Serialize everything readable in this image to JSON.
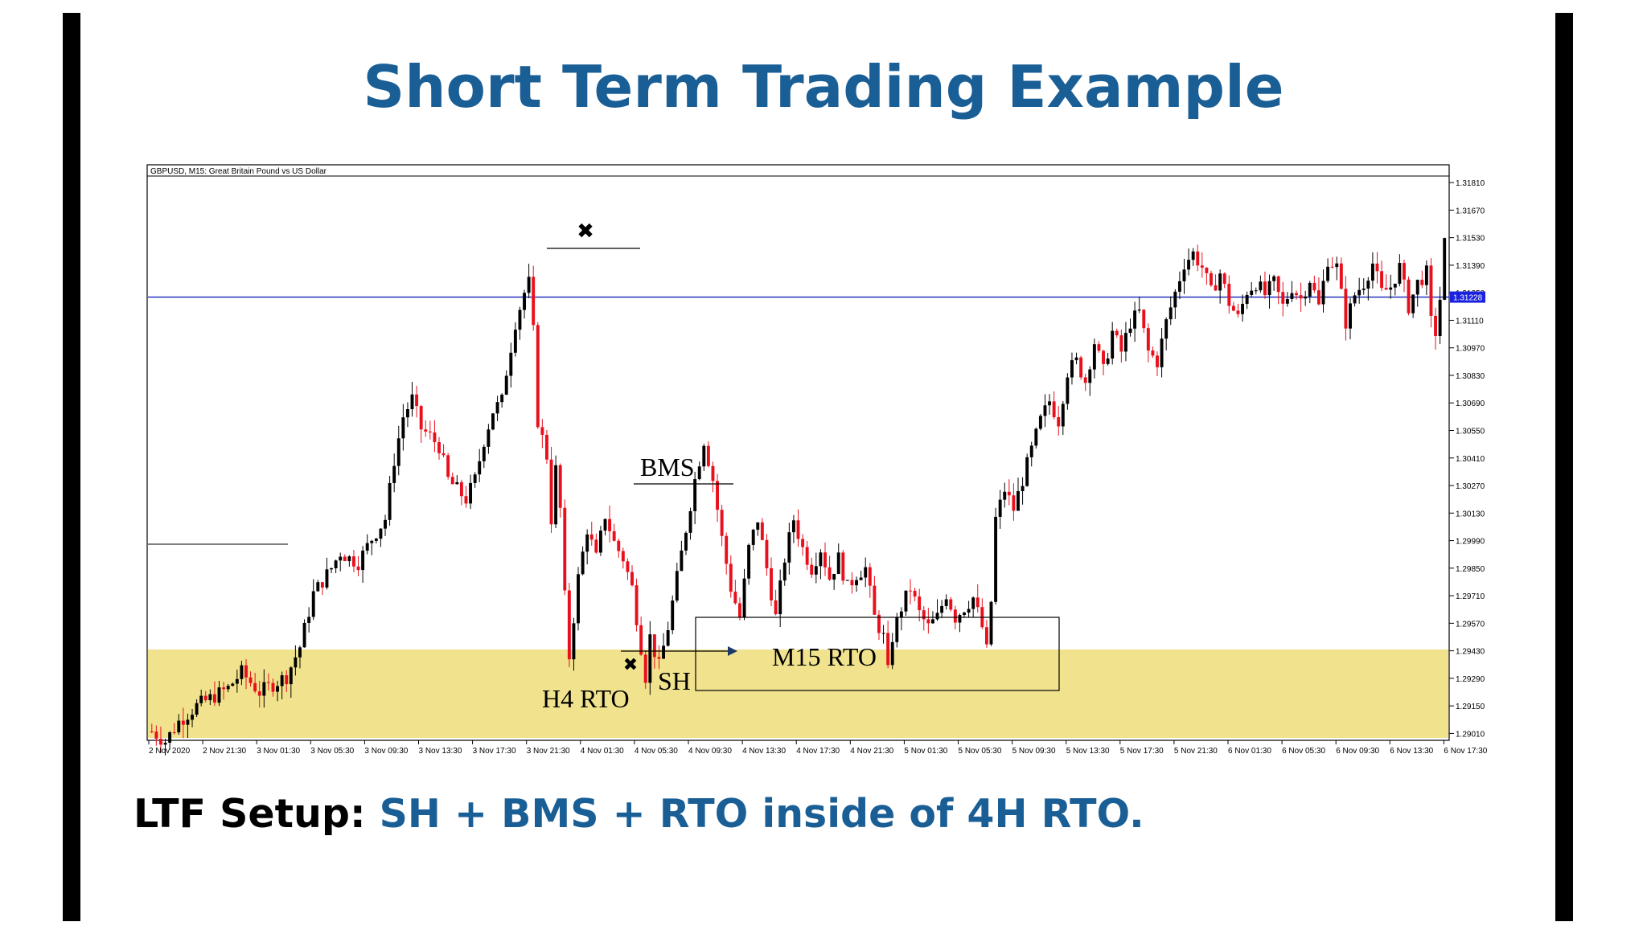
{
  "slide": {
    "title": "Short Term Trading Example",
    "caption_lead": "LTF Setup:",
    "caption_rest": "SH + BMS + RTO inside of 4H RTO.",
    "accent_color": "#1a5e96"
  },
  "chart_data": {
    "type": "candlestick",
    "header": "GBPUSD, M15:  Great Britain Pound vs US Dollar",
    "symbol": "GBPUSD",
    "timeframe": "M15",
    "current_price": "1.31228",
    "current_price_value": 1.31228,
    "ylim": [
      1.2893,
      1.3188
    ],
    "y_ticks": [
      "1.31810",
      "1.31670",
      "1.31530",
      "1.31390",
      "1.31250",
      "1.31110",
      "1.30970",
      "1.30830",
      "1.30690",
      "1.30550",
      "1.30410",
      "1.30270",
      "1.30130",
      "1.29990",
      "1.29850",
      "1.29710",
      "1.29570",
      "1.29430",
      "1.29290",
      "1.29150",
      "1.29010"
    ],
    "x_ticks": [
      "2 Nov 2020",
      "2 Nov 21:30",
      "3 Nov 01:30",
      "3 Nov 05:30",
      "3 Nov 09:30",
      "3 Nov 13:30",
      "3 Nov 17:30",
      "3 Nov 21:30",
      "4 Nov 01:30",
      "4 Nov 05:30",
      "4 Nov 09:30",
      "4 Nov 13:30",
      "4 Nov 17:30",
      "4 Nov 21:30",
      "5 Nov 01:30",
      "5 Nov 05:30",
      "5 Nov 09:30",
      "5 Nov 13:30",
      "5 Nov 17:30",
      "5 Nov 21:30",
      "6 Nov 01:30",
      "6 Nov 05:30",
      "6 Nov 09:30",
      "6 Nov 13:30",
      "6 Nov 17:30"
    ],
    "bull_color": "#000000",
    "bear_color": "#e8101c",
    "zone_color": "#f1e38e",
    "price_path": [
      [
        0,
        1.2902
      ],
      [
        3,
        1.2897
      ],
      [
        6,
        1.2907
      ],
      [
        10,
        1.2915
      ],
      [
        14,
        1.292
      ],
      [
        17,
        1.2924
      ],
      [
        20,
        1.2932
      ],
      [
        22,
        1.2927
      ],
      [
        24,
        1.2922
      ],
      [
        27,
        1.2926
      ],
      [
        30,
        1.293
      ],
      [
        33,
        1.2945
      ],
      [
        36,
        1.2972
      ],
      [
        40,
        1.2985
      ],
      [
        42,
        1.2993
      ],
      [
        44,
        1.299
      ],
      [
        46,
        1.2988
      ],
      [
        49,
        1.3
      ],
      [
        52,
        1.301
      ],
      [
        54,
        1.304
      ],
      [
        56,
        1.3062
      ],
      [
        58,
        1.3071
      ],
      [
        60,
        1.3056
      ],
      [
        62,
        1.3052
      ],
      [
        64,
        1.3047
      ],
      [
        66,
        1.303
      ],
      [
        68,
        1.3025
      ],
      [
        70,
        1.302
      ],
      [
        72,
        1.303
      ],
      [
        74,
        1.305
      ],
      [
        76,
        1.3065
      ],
      [
        78,
        1.307
      ],
      [
        79,
        1.3085
      ],
      [
        81,
        1.311
      ],
      [
        83,
        1.3125
      ],
      [
        84,
        1.313
      ],
      [
        85,
        1.3105
      ],
      [
        86,
        1.306
      ],
      [
        88,
        1.3042
      ],
      [
        89,
        1.301
      ],
      [
        90,
        1.3035
      ],
      [
        91,
        1.3015
      ],
      [
        92,
        1.297
      ],
      [
        93,
        1.294
      ],
      [
        95,
        1.298
      ],
      [
        97,
        1.3005
      ],
      [
        99,
        1.299
      ],
      [
        101,
        1.3012
      ],
      [
        103,
        1.2998
      ],
      [
        105,
        1.299
      ],
      [
        107,
        1.2975
      ],
      [
        109,
        1.2945
      ],
      [
        110,
        1.293
      ],
      [
        111,
        1.295
      ],
      [
        113,
        1.2935
      ],
      [
        115,
        1.2955
      ],
      [
        117,
        1.298
      ],
      [
        119,
        1.3005
      ],
      [
        121,
        1.303
      ],
      [
        123,
        1.305
      ],
      [
        125,
        1.303
      ],
      [
        127,
        1.3
      ],
      [
        129,
        1.2975
      ],
      [
        131,
        1.296
      ],
      [
        133,
        1.2995
      ],
      [
        135,
        1.301
      ],
      [
        137,
        1.2985
      ],
      [
        139,
        1.296
      ],
      [
        141,
        1.299
      ],
      [
        143,
        1.301
      ],
      [
        145,
        1.2995
      ],
      [
        147,
        1.2985
      ],
      [
        149,
        1.2995
      ],
      [
        151,
        1.298
      ],
      [
        153,
        1.299
      ],
      [
        155,
        1.2975
      ],
      [
        157,
        1.2982
      ],
      [
        159,
        1.2985
      ],
      [
        161,
        1.296
      ],
      [
        163,
        1.295
      ],
      [
        164,
        1.2932
      ],
      [
        165,
        1.295
      ],
      [
        167,
        1.2965
      ],
      [
        169,
        1.2975
      ],
      [
        171,
        1.2962
      ],
      [
        173,
        1.2955
      ],
      [
        175,
        1.296
      ],
      [
        177,
        1.2972
      ],
      [
        179,
        1.296
      ],
      [
        181,
        1.2965
      ],
      [
        183,
        1.297
      ],
      [
        185,
        1.2955
      ],
      [
        186,
        1.2943
      ],
      [
        187,
        1.2968
      ],
      [
        188,
        1.301
      ],
      [
        190,
        1.3025
      ],
      [
        192,
        1.3015
      ],
      [
        194,
        1.303
      ],
      [
        196,
        1.3045
      ],
      [
        198,
        1.306
      ],
      [
        200,
        1.307
      ],
      [
        202,
        1.306
      ],
      [
        204,
        1.3085
      ],
      [
        206,
        1.309
      ],
      [
        208,
        1.308
      ],
      [
        210,
        1.31
      ],
      [
        212,
        1.3085
      ],
      [
        214,
        1.3105
      ],
      [
        216,
        1.3095
      ],
      [
        218,
        1.311
      ],
      [
        220,
        1.3115
      ],
      [
        222,
        1.3095
      ],
      [
        224,
        1.309
      ],
      [
        226,
        1.311
      ],
      [
        228,
        1.3125
      ],
      [
        230,
        1.314
      ],
      [
        232,
        1.3145
      ],
      [
        234,
        1.3138
      ],
      [
        236,
        1.3125
      ],
      [
        238,
        1.3135
      ],
      [
        240,
        1.312
      ],
      [
        242,
        1.3112
      ],
      [
        244,
        1.3126
      ],
      [
        246,
        1.313
      ],
      [
        248,
        1.3124
      ],
      [
        250,
        1.313
      ],
      [
        252,
        1.3118
      ],
      [
        254,
        1.3128
      ],
      [
        256,
        1.3122
      ],
      [
        258,
        1.3132
      ],
      [
        260,
        1.3118
      ],
      [
        262,
        1.3142
      ],
      [
        264,
        1.3138
      ],
      [
        266,
        1.311
      ],
      [
        268,
        1.3124
      ],
      [
        270,
        1.313
      ],
      [
        272,
        1.314
      ],
      [
        274,
        1.3125
      ],
      [
        276,
        1.3128
      ],
      [
        278,
        1.3138
      ],
      [
        280,
        1.3118
      ],
      [
        282,
        1.313
      ],
      [
        284,
        1.3135
      ],
      [
        285,
        1.311
      ],
      [
        286,
        1.3105
      ],
      [
        287,
        1.3122
      ],
      [
        288,
        1.315
      ]
    ],
    "annotations": {
      "h4_rto": "H4 RTO",
      "m15_rto": "M15 RTO",
      "bms": "BMS",
      "sh": "SH",
      "x_mark": "✖"
    }
  }
}
